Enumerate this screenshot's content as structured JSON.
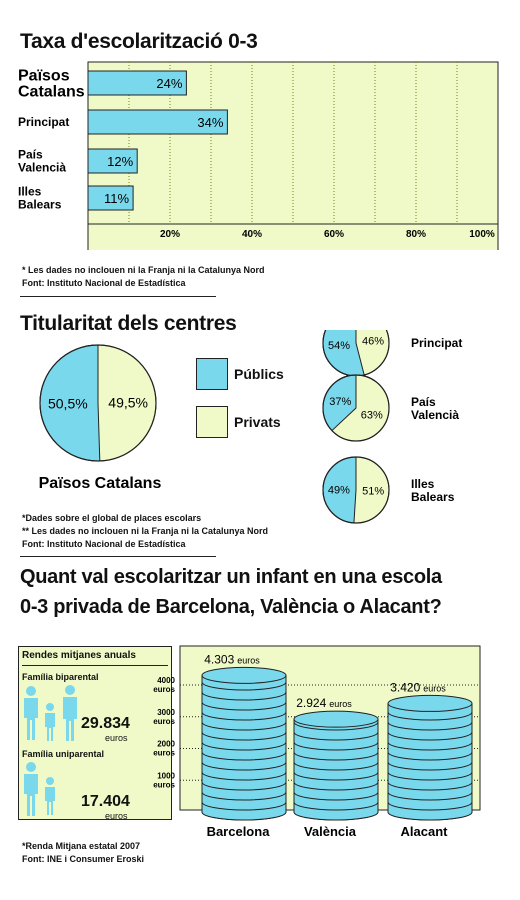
{
  "section1": {
    "title": "Taxa d'escolarització 0-3",
    "notes": [
      "* Les dades no inclouen ni la Franja ni la Catalunya Nord",
      "Font: Instituto Nacional de Estadística"
    ]
  },
  "section2": {
    "title": "Titularitat dels centres",
    "legend": {
      "public": "Públics",
      "private": "Privats"
    },
    "notes": [
      "*Dades sobre el global de places escolars",
      "** Les dades no inclouen ni la Franja ni la Catalunya Nord",
      "Font: Instituto Nacional de Estadística"
    ]
  },
  "section3": {
    "title_line1": "Quant val escolaritzar un infant en una escola",
    "title_line2": "0-3 privada de Barcelona, València o Alacant?",
    "income_box": {
      "title": "Rendes mitjanes anuals",
      "family1_label": "Família biparental",
      "family1_value": "29.834",
      "family1_unit": "euros",
      "family2_label": "Família uniparental",
      "family2_value": "17.404",
      "family2_unit": "euros"
    },
    "notes": [
      "*Renda Mitjana estatal 2007",
      "Font: INE i Consumer Eroski"
    ]
  },
  "colors": {
    "public": "#7ad8ec",
    "private": "#f0f9c8",
    "box_bg": "#f0f9c8",
    "coin": "#7ad8ec"
  },
  "chart_data": [
    {
      "type": "bar",
      "orientation": "horizontal",
      "title": "Taxa d'escolarització 0-3",
      "categories": [
        "Països Catalans",
        "Principat",
        "País Valencià",
        "Illes Balears"
      ],
      "values": [
        24,
        34,
        12,
        11
      ],
      "value_labels": [
        "24%",
        "34%",
        "12%",
        "11%"
      ],
      "xlim": [
        0,
        100
      ],
      "x_ticks": [
        20,
        40,
        60,
        80,
        100
      ],
      "x_tick_labels": [
        "20%",
        "40%",
        "60%",
        "80%",
        "100%"
      ],
      "grid": true
    },
    {
      "type": "pie",
      "title": "Països Catalans",
      "labels": [
        "Públics",
        "Privats"
      ],
      "values": [
        50.5,
        49.5
      ],
      "value_labels": [
        "50,5%",
        "49,5%"
      ]
    },
    {
      "type": "pie",
      "title": "Principat",
      "labels": [
        "Públics",
        "Privats"
      ],
      "values": [
        54,
        46
      ],
      "value_labels": [
        "54%",
        "46%"
      ]
    },
    {
      "type": "pie",
      "title": "País Valencià",
      "labels": [
        "Públics",
        "Privats"
      ],
      "values": [
        37,
        63
      ],
      "value_labels": [
        "37%",
        "63%"
      ]
    },
    {
      "type": "pie",
      "title": "Illes Balears",
      "labels": [
        "Públics",
        "Privats"
      ],
      "values": [
        49,
        51
      ],
      "value_labels": [
        "49%",
        "51%"
      ]
    },
    {
      "type": "bar",
      "style": "coin-stacks",
      "categories": [
        "Barcelona",
        "València",
        "Alacant"
      ],
      "values": [
        4303,
        2924,
        3420
      ],
      "value_labels": [
        "4.303",
        "2.924",
        "3.420"
      ],
      "value_unit": "euros",
      "y_ticks": [
        1000,
        2000,
        3000,
        4000
      ],
      "y_unit": "euros",
      "ylim": [
        0,
        4500
      ],
      "grid": true
    }
  ]
}
